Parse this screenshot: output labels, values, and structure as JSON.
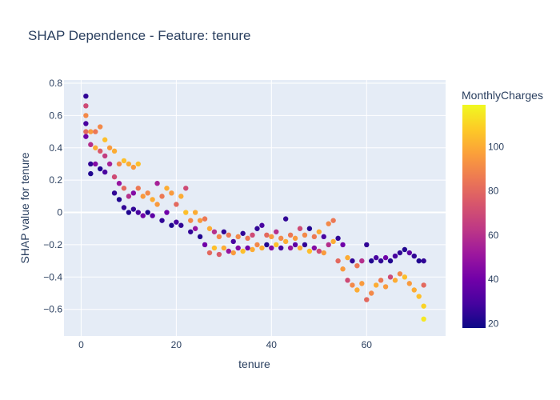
{
  "chart_data": {
    "type": "scatter",
    "title": "SHAP Dependence - Feature: tenure",
    "xlabel": "tenure",
    "ylabel": "SHAP value for tenure",
    "xlim": [
      -3.6,
      76.6
    ],
    "ylim": [
      -0.765,
      0.82
    ],
    "xticks": [
      0,
      20,
      40,
      60
    ],
    "yticks": [
      -0.6,
      -0.4,
      -0.2,
      0,
      0.2,
      0.4,
      0.6,
      0.8
    ],
    "grid": true,
    "colorbar": {
      "title": "MonthlyCharges",
      "min": 18,
      "max": 119,
      "ticks": [
        20,
        40,
        60,
        80,
        100
      ],
      "colorscale": "plasma"
    },
    "series": [
      {
        "marker_color_field": "MonthlyCharges",
        "points": [
          {
            "x": 1,
            "y": 0.72,
            "c": 25
          },
          {
            "x": 1,
            "y": 0.66,
            "c": 70
          },
          {
            "x": 1,
            "y": 0.6,
            "c": 90
          },
          {
            "x": 1,
            "y": 0.55,
            "c": 30
          },
          {
            "x": 1,
            "y": 0.5,
            "c": 80
          },
          {
            "x": 1,
            "y": 0.47,
            "c": 40
          },
          {
            "x": 2,
            "y": 0.5,
            "c": 95
          },
          {
            "x": 2,
            "y": 0.42,
            "c": 60
          },
          {
            "x": 2,
            "y": 0.3,
            "c": 25
          },
          {
            "x": 2,
            "y": 0.24,
            "c": 22
          },
          {
            "x": 3,
            "y": 0.5,
            "c": 85
          },
          {
            "x": 3,
            "y": 0.4,
            "c": 100
          },
          {
            "x": 3,
            "y": 0.3,
            "c": 45
          },
          {
            "x": 4,
            "y": 0.53,
            "c": 90
          },
          {
            "x": 4,
            "y": 0.38,
            "c": 75
          },
          {
            "x": 4,
            "y": 0.27,
            "c": 22
          },
          {
            "x": 5,
            "y": 0.45,
            "c": 105
          },
          {
            "x": 5,
            "y": 0.35,
            "c": 65
          },
          {
            "x": 5,
            "y": 0.25,
            "c": 30
          },
          {
            "x": 6,
            "y": 0.4,
            "c": 95
          },
          {
            "x": 6,
            "y": 0.3,
            "c": 55
          },
          {
            "x": 7,
            "y": 0.38,
            "c": 100
          },
          {
            "x": 7,
            "y": 0.22,
            "c": 70
          },
          {
            "x": 7,
            "y": 0.12,
            "c": 25
          },
          {
            "x": 8,
            "y": 0.3,
            "c": 90
          },
          {
            "x": 8,
            "y": 0.18,
            "c": 50
          },
          {
            "x": 8,
            "y": 0.08,
            "c": 22
          },
          {
            "x": 9,
            "y": 0.32,
            "c": 105
          },
          {
            "x": 9,
            "y": 0.15,
            "c": 80
          },
          {
            "x": 9,
            "y": 0.03,
            "c": 25
          },
          {
            "x": 10,
            "y": 0.3,
            "c": 100
          },
          {
            "x": 10,
            "y": 0.1,
            "c": 60
          },
          {
            "x": 10,
            "y": 0.0,
            "c": 22
          },
          {
            "x": 11,
            "y": 0.28,
            "c": 95
          },
          {
            "x": 11,
            "y": 0.12,
            "c": 45
          },
          {
            "x": 11,
            "y": 0.02,
            "c": 25
          },
          {
            "x": 12,
            "y": 0.3,
            "c": 105
          },
          {
            "x": 12,
            "y": 0.15,
            "c": 85
          },
          {
            "x": 12,
            "y": 0.0,
            "c": 30
          },
          {
            "x": 13,
            "y": 0.1,
            "c": 95
          },
          {
            "x": 13,
            "y": -0.02,
            "c": 40
          },
          {
            "x": 14,
            "y": 0.12,
            "c": 90
          },
          {
            "x": 14,
            "y": 0.0,
            "c": 22
          },
          {
            "x": 15,
            "y": 0.08,
            "c": 100
          },
          {
            "x": 15,
            "y": -0.02,
            "c": 35
          },
          {
            "x": 16,
            "y": 0.18,
            "c": 55
          },
          {
            "x": 16,
            "y": 0.05,
            "c": 95
          },
          {
            "x": 17,
            "y": 0.1,
            "c": 85
          },
          {
            "x": 17,
            "y": -0.05,
            "c": 25
          },
          {
            "x": 18,
            "y": 0.15,
            "c": 100
          },
          {
            "x": 18,
            "y": 0.0,
            "c": 40
          },
          {
            "x": 19,
            "y": 0.12,
            "c": 95
          },
          {
            "x": 19,
            "y": -0.08,
            "c": 22
          },
          {
            "x": 20,
            "y": 0.05,
            "c": 80
          },
          {
            "x": 20,
            "y": -0.06,
            "c": 30
          },
          {
            "x": 21,
            "y": 0.1,
            "c": 100
          },
          {
            "x": 21,
            "y": -0.08,
            "c": 25
          },
          {
            "x": 22,
            "y": 0.15,
            "c": 70
          },
          {
            "x": 22,
            "y": 0.0,
            "c": 105
          },
          {
            "x": 23,
            "y": -0.05,
            "c": 90
          },
          {
            "x": 23,
            "y": -0.12,
            "c": 25
          },
          {
            "x": 24,
            "y": 0.0,
            "c": 100
          },
          {
            "x": 24,
            "y": -0.1,
            "c": 50
          },
          {
            "x": 25,
            "y": -0.05,
            "c": 95
          },
          {
            "x": 25,
            "y": -0.15,
            "c": 22
          },
          {
            "x": 26,
            "y": -0.04,
            "c": 85
          },
          {
            "x": 26,
            "y": -0.2,
            "c": 40
          },
          {
            "x": 27,
            "y": -0.1,
            "c": 100
          },
          {
            "x": 27,
            "y": -0.25,
            "c": 80
          },
          {
            "x": 28,
            "y": -0.12,
            "c": 60
          },
          {
            "x": 28,
            "y": -0.22,
            "c": 105
          },
          {
            "x": 29,
            "y": -0.15,
            "c": 90
          },
          {
            "x": 29,
            "y": -0.26,
            "c": 75
          },
          {
            "x": 30,
            "y": -0.12,
            "c": 25
          },
          {
            "x": 30,
            "y": -0.22,
            "c": 100
          },
          {
            "x": 31,
            "y": -0.14,
            "c": 85
          },
          {
            "x": 31,
            "y": -0.24,
            "c": 50
          },
          {
            "x": 32,
            "y": -0.18,
            "c": 30
          },
          {
            "x": 32,
            "y": -0.25,
            "c": 95
          },
          {
            "x": 33,
            "y": -0.15,
            "c": 90
          },
          {
            "x": 33,
            "y": -0.22,
            "c": 45
          },
          {
            "x": 34,
            "y": -0.13,
            "c": 25
          },
          {
            "x": 34,
            "y": -0.24,
            "c": 105
          },
          {
            "x": 35,
            "y": -0.16,
            "c": 85
          },
          {
            "x": 35,
            "y": -0.22,
            "c": 40
          },
          {
            "x": 36,
            "y": -0.14,
            "c": 70
          },
          {
            "x": 36,
            "y": -0.23,
            "c": 100
          },
          {
            "x": 37,
            "y": -0.1,
            "c": 25
          },
          {
            "x": 37,
            "y": -0.2,
            "c": 90
          },
          {
            "x": 38,
            "y": -0.08,
            "c": 30
          },
          {
            "x": 38,
            "y": -0.22,
            "c": 100
          },
          {
            "x": 39,
            "y": -0.14,
            "c": 80
          },
          {
            "x": 39,
            "y": -0.2,
            "c": 22
          },
          {
            "x": 40,
            "y": -0.15,
            "c": 95
          },
          {
            "x": 40,
            "y": -0.22,
            "c": 45
          },
          {
            "x": 41,
            "y": -0.12,
            "c": 60
          },
          {
            "x": 41,
            "y": -0.2,
            "c": 105
          },
          {
            "x": 42,
            "y": -0.16,
            "c": 90
          },
          {
            "x": 42,
            "y": -0.22,
            "c": 30
          },
          {
            "x": 43,
            "y": -0.04,
            "c": 25
          },
          {
            "x": 43,
            "y": -0.18,
            "c": 100
          },
          {
            "x": 44,
            "y": -0.14,
            "c": 85
          },
          {
            "x": 44,
            "y": -0.22,
            "c": 50
          },
          {
            "x": 45,
            "y": -0.16,
            "c": 95
          },
          {
            "x": 45,
            "y": -0.2,
            "c": 35
          },
          {
            "x": 46,
            "y": -0.1,
            "c": 70
          },
          {
            "x": 46,
            "y": -0.22,
            "c": 100
          },
          {
            "x": 47,
            "y": -0.14,
            "c": 90
          },
          {
            "x": 47,
            "y": -0.2,
            "c": 25
          },
          {
            "x": 48,
            "y": -0.1,
            "c": 22
          },
          {
            "x": 48,
            "y": -0.24,
            "c": 105
          },
          {
            "x": 49,
            "y": -0.15,
            "c": 85
          },
          {
            "x": 49,
            "y": -0.22,
            "c": 45
          },
          {
            "x": 50,
            "y": -0.12,
            "c": 100
          },
          {
            "x": 50,
            "y": -0.24,
            "c": 70
          },
          {
            "x": 51,
            "y": -0.15,
            "c": 30
          },
          {
            "x": 51,
            "y": -0.25,
            "c": 95
          },
          {
            "x": 52,
            "y": -0.07,
            "c": 90
          },
          {
            "x": 52,
            "y": -0.2,
            "c": 60
          },
          {
            "x": 53,
            "y": -0.05,
            "c": 85
          },
          {
            "x": 53,
            "y": -0.18,
            "c": 100
          },
          {
            "x": 54,
            "y": -0.16,
            "c": 25
          },
          {
            "x": 54,
            "y": -0.3,
            "c": 80
          },
          {
            "x": 55,
            "y": -0.2,
            "c": 40
          },
          {
            "x": 55,
            "y": -0.35,
            "c": 95
          },
          {
            "x": 56,
            "y": -0.28,
            "c": 100
          },
          {
            "x": 56,
            "y": -0.42,
            "c": 70
          },
          {
            "x": 57,
            "y": -0.3,
            "c": 25
          },
          {
            "x": 57,
            "y": -0.45,
            "c": 90
          },
          {
            "x": 58,
            "y": -0.33,
            "c": 85
          },
          {
            "x": 58,
            "y": -0.48,
            "c": 100
          },
          {
            "x": 59,
            "y": -0.3,
            "c": 60
          },
          {
            "x": 59,
            "y": -0.44,
            "c": 95
          },
          {
            "x": 60,
            "y": -0.2,
            "c": 25
          },
          {
            "x": 60,
            "y": -0.54,
            "c": 80
          },
          {
            "x": 61,
            "y": -0.3,
            "c": 22
          },
          {
            "x": 61,
            "y": -0.5,
            "c": 90
          },
          {
            "x": 62,
            "y": -0.28,
            "c": 30
          },
          {
            "x": 62,
            "y": -0.45,
            "c": 100
          },
          {
            "x": 63,
            "y": -0.3,
            "c": 25
          },
          {
            "x": 63,
            "y": -0.42,
            "c": 85
          },
          {
            "x": 64,
            "y": -0.28,
            "c": 40
          },
          {
            "x": 64,
            "y": -0.46,
            "c": 95
          },
          {
            "x": 65,
            "y": -0.3,
            "c": 22
          },
          {
            "x": 65,
            "y": -0.4,
            "c": 70
          },
          {
            "x": 66,
            "y": -0.27,
            "c": 30
          },
          {
            "x": 66,
            "y": -0.42,
            "c": 100
          },
          {
            "x": 67,
            "y": -0.25,
            "c": 25
          },
          {
            "x": 67,
            "y": -0.38,
            "c": 90
          },
          {
            "x": 68,
            "y": -0.23,
            "c": 22
          },
          {
            "x": 68,
            "y": -0.4,
            "c": 105
          },
          {
            "x": 69,
            "y": -0.25,
            "c": 35
          },
          {
            "x": 69,
            "y": -0.44,
            "c": 95
          },
          {
            "x": 70,
            "y": -0.27,
            "c": 25
          },
          {
            "x": 70,
            "y": -0.48,
            "c": 100
          },
          {
            "x": 71,
            "y": -0.3,
            "c": 22
          },
          {
            "x": 71,
            "y": -0.52,
            "c": 105
          },
          {
            "x": 72,
            "y": -0.3,
            "c": 25
          },
          {
            "x": 72,
            "y": -0.45,
            "c": 80
          },
          {
            "x": 72,
            "y": -0.58,
            "c": 110
          },
          {
            "x": 72,
            "y": -0.66,
            "c": 115
          }
        ]
      }
    ]
  }
}
